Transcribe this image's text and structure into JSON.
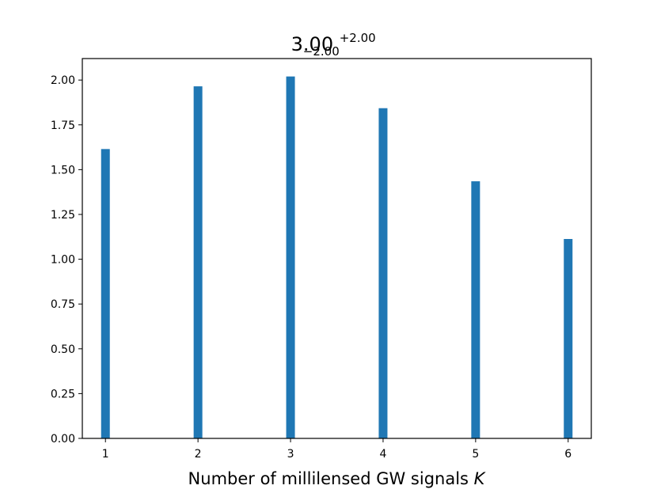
{
  "chart_data": {
    "type": "bar",
    "title": {
      "base": "3.00",
      "upper": "+2.00",
      "lower": "−2.00"
    },
    "xlabel": "Number of millilensed GW signals ",
    "xlabel_var": "K",
    "ylabel": "",
    "categories": [
      1,
      2,
      3,
      4,
      5,
      6
    ],
    "values": [
      1.615,
      1.965,
      2.02,
      1.843,
      1.435,
      1.113
    ],
    "xticks": [
      "1",
      "2",
      "3",
      "4",
      "5",
      "6"
    ],
    "yticks": [
      "0.00",
      "0.25",
      "0.50",
      "0.75",
      "1.00",
      "1.25",
      "1.50",
      "1.75",
      "2.00"
    ],
    "xlim": [
      0.75,
      6.25
    ],
    "ylim": [
      0,
      2.12
    ],
    "bar_color": "#1f77b4",
    "grid": false
  }
}
